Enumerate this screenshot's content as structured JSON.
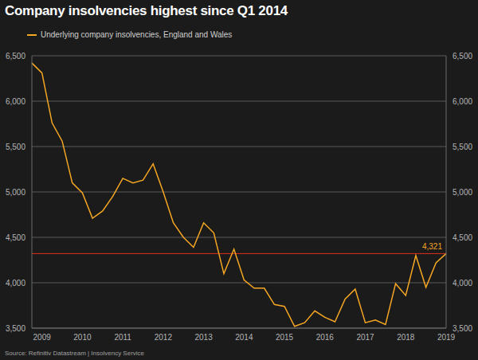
{
  "chart_data": {
    "type": "line",
    "title": "Company insolvencies highest since Q1 2014",
    "source": "Source: Refinitiv Datastream | Insolvency Service",
    "categories": [
      null,
      "2009",
      null,
      null,
      null,
      "2010",
      null,
      null,
      null,
      "2011",
      null,
      null,
      null,
      "2012",
      null,
      null,
      null,
      "2013",
      null,
      null,
      null,
      "2014",
      null,
      null,
      null,
      "2015",
      null,
      null,
      null,
      "2016",
      null,
      null,
      null,
      "2017",
      null,
      null,
      null,
      "2018",
      null,
      null,
      null,
      "2019"
    ],
    "series": [
      {
        "name": "Underlying company insolvencies, England and Wales",
        "color": "#f5a623",
        "values": [
          6420,
          6310,
          5760,
          5560,
          5100,
          4990,
          4710,
          4790,
          4950,
          5150,
          5100,
          5130,
          5310,
          5000,
          4660,
          4500,
          4390,
          4660,
          4550,
          4100,
          4370,
          4030,
          3940,
          3940,
          3760,
          3740,
          3520,
          3560,
          3690,
          3620,
          3570,
          3820,
          3930,
          3560,
          3590,
          3540,
          3990,
          3860,
          4300,
          3950,
          4220,
          4321
        ]
      }
    ],
    "reference_line": {
      "value": 4321,
      "label": "4,321",
      "color": "#e0301e"
    },
    "ylim": [
      3500,
      6500
    ],
    "yticks": [
      {
        "value": 3500,
        "label": "3,500"
      },
      {
        "value": 4000,
        "label": "4,000"
      },
      {
        "value": 4500,
        "label": "4,500"
      },
      {
        "value": 5000,
        "label": "5,000"
      },
      {
        "value": 5500,
        "label": "5,500"
      },
      {
        "value": 6000,
        "label": "6,000"
      },
      {
        "value": 6500,
        "label": "6,500"
      }
    ],
    "grid": true
  }
}
